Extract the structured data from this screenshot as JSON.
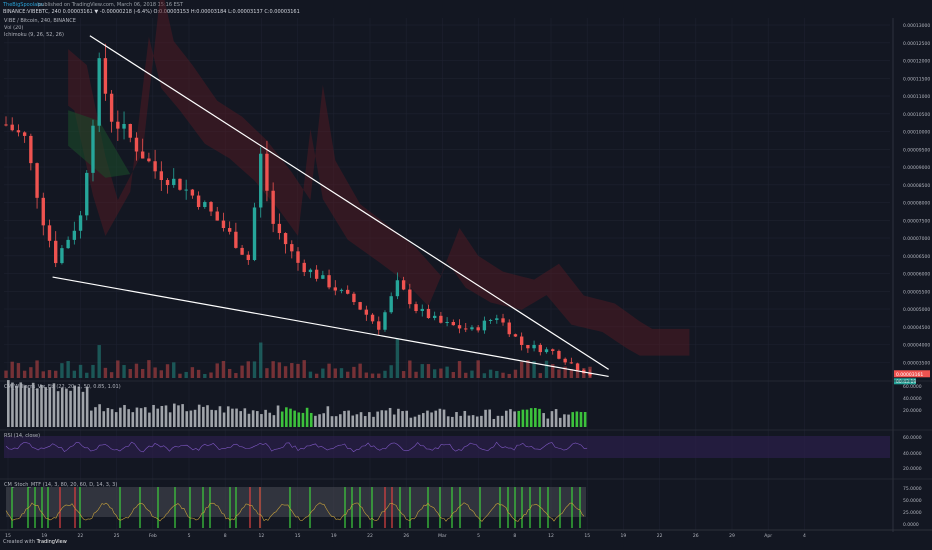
{
  "header": {
    "publisher": "TheBigSpoolabs",
    "published": "published on TradingView.com, March 06, 2018 15:16 EST",
    "ticker": "BINANCE:VIBEBTC, 240",
    "price_line": "0.00003161 ▼ -0.00000218 (-6.4%) O:0.00003153 H:0.00003184 L:0.00003137 C:0.00003161",
    "symbol": "VIBE / Bitcoin, 240, BINANCE",
    "indicators": [
      "Vol (20)",
      "Ichimoku (9, 26, 52, 26)"
    ]
  },
  "panels": {
    "williams_vix": "CM_Williams_Vix_Fix (22, 20, 2, 50, 0.85, 1.01)",
    "rsi": "RSI (14, close)",
    "stoch": "CM_Stoch_MTF (14, 3, 80, 20, 60, D, 14, 3, 3)"
  },
  "colors": {
    "bg": "#131722",
    "up": "#26a69a",
    "down": "#ef5350",
    "trendline": "#ffffff",
    "vix_green": "#3cc23c",
    "vix_gray": "#a0a4aa",
    "rsi_band": "#2b1f4a",
    "rsi_line": "#7e57c2",
    "stoch_line": "#c8a23c",
    "stoch_cross_green": "#3cd23c",
    "stoch_cross_red": "#e04040",
    "price_tag": "#ef5350",
    "time_tag": "#26a69a"
  },
  "chart_data": {
    "type": "candlestick",
    "title": "VIBE / Bitcoin, 240, BINANCE",
    "x_ticks": [
      "15",
      "19",
      "22",
      "25",
      "Feb",
      "5",
      "8",
      "12",
      "15",
      "19",
      "22",
      "26",
      "Mar",
      "5",
      "8",
      "12",
      "15",
      "19",
      "22",
      "26",
      "29",
      "Apr",
      "4"
    ],
    "y_ticks": [
      "0.00013000",
      "0.00012500",
      "0.00012000",
      "0.00011500",
      "0.00011000",
      "0.00010500",
      "0.00010000",
      "0.00009500",
      "0.00009000",
      "0.00008500",
      "0.00008000",
      "0.00007500",
      "0.00007000",
      "0.00006500",
      "0.00006000",
      "0.00005500",
      "0.00005000",
      "0.00004500",
      "0.00004000",
      "0.00003500"
    ],
    "ylim": [
      3e-05,
      0.000132
    ],
    "price_key_points": [
      {
        "t": 0,
        "p": 0.000102
      },
      {
        "t": 3,
        "p": 9.8e-05
      },
      {
        "t": 6,
        "p": 7.5e-05
      },
      {
        "t": 8,
        "p": 6.4e-05
      },
      {
        "t": 12,
        "p": 7.6e-05
      },
      {
        "t": 15,
        "p": 0.000118
      },
      {
        "t": 17,
        "p": 0.000104
      },
      {
        "t": 20,
        "p": 9.8e-05
      },
      {
        "t": 24,
        "p": 8.9e-05
      },
      {
        "t": 28,
        "p": 8.5e-05
      },
      {
        "t": 32,
        "p": 7.9e-05
      },
      {
        "t": 36,
        "p": 7.1e-05
      },
      {
        "t": 39,
        "p": 6.4e-05
      },
      {
        "t": 41,
        "p": 9.3e-05
      },
      {
        "t": 43,
        "p": 7.4e-05
      },
      {
        "t": 47,
        "p": 6.3e-05
      },
      {
        "t": 52,
        "p": 5.7e-05
      },
      {
        "t": 56,
        "p": 5.2e-05
      },
      {
        "t": 60,
        "p": 4.5e-05
      },
      {
        "t": 63,
        "p": 5.7e-05
      },
      {
        "t": 66,
        "p": 5e-05
      },
      {
        "t": 70,
        "p": 4.6e-05
      },
      {
        "t": 75,
        "p": 4.4e-05
      },
      {
        "t": 79,
        "p": 4.8e-05
      },
      {
        "t": 83,
        "p": 4e-05
      },
      {
        "t": 88,
        "p": 3.8e-05
      },
      {
        "t": 92,
        "p": 3.35e-05
      },
      {
        "t": 94,
        "p": 3.16e-05
      }
    ],
    "n_candles": 95,
    "trendlines": [
      {
        "from": {
          "t": 13.5,
          "p": 0.000127
        },
        "to": {
          "t": 97,
          "p": 3.3e-05
        }
      },
      {
        "from": {
          "t": 7.5,
          "p": 5.9e-05
        },
        "to": {
          "t": 97,
          "p": 3.1e-05
        }
      }
    ],
    "last_price": "0.00003161",
    "countdown": "00:43:19",
    "rsi_ticks": [
      "60.0000",
      "40.0000",
      "20.0000"
    ],
    "vix_ticks": [
      "60.0000",
      "40.0000",
      "20.0000"
    ],
    "stoch_ticks": [
      "75.0000",
      "50.0000",
      "25.0000",
      "0.0000"
    ]
  },
  "footer": {
    "created_with": "Created with",
    "brand": "TradingView"
  }
}
